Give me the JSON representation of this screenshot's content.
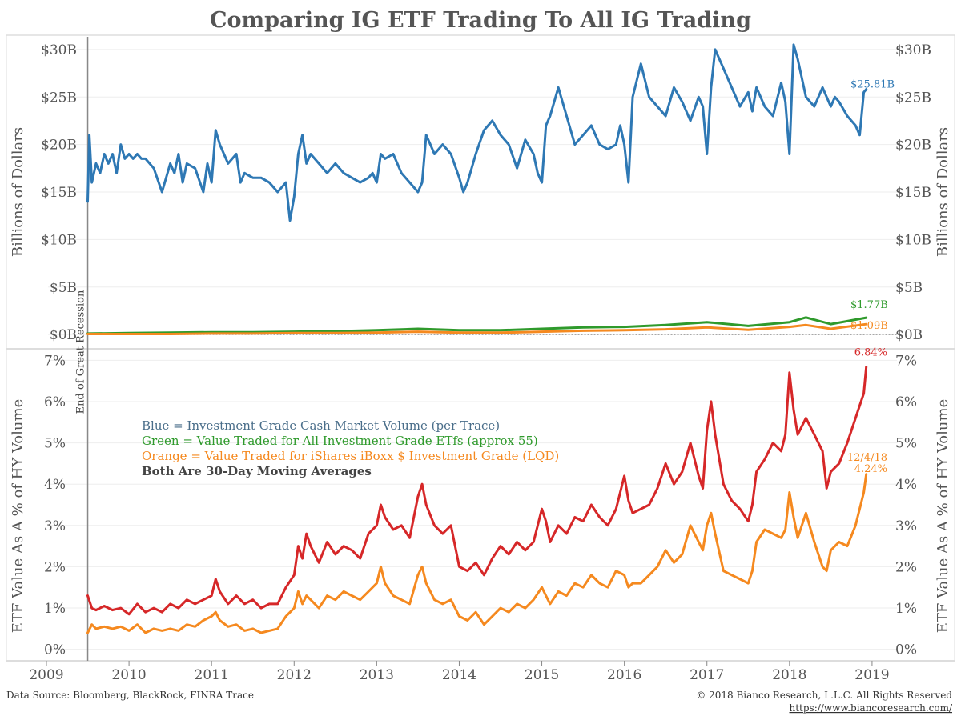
{
  "title": "Comparing IG ETF Trading To All IG Trading",
  "source_text": "Data Source: Bloomberg, BlackRock, FINRA Trace",
  "copyright_text": "© 2018 Bianco Research, L.L.C. All Rights Reserved",
  "url_text": "https://www.biancoresearch.com/",
  "recession_label": "End of Great Recession",
  "legend": {
    "blue": "Blue = Investment Grade Cash Market Volume (per Trace)",
    "green": "Green = Value Traded for All Investment Grade ETfs (approx 55)",
    "orange": "Orange = Value Traded for iShares iBoxx $ Investment Grade (LQD)",
    "note": "Both Are 30-Day Moving Averages"
  },
  "colors": {
    "blue": "#2e78b4",
    "green": "#2f9a2c",
    "orange": "#f5891f",
    "red": "#d62728",
    "text": "#555555"
  },
  "chart_data": [
    {
      "type": "line",
      "panel": "top",
      "ylabel": "Billions of Dollars",
      "ylim": [
        -1,
        31
      ],
      "yticks": [
        0,
        5,
        10,
        15,
        20,
        25,
        30
      ],
      "ytick_labels": [
        "$0B",
        "$5B",
        "$10B",
        "$15B",
        "$20B",
        "$25B",
        "$30B"
      ],
      "xlim": [
        2009.0,
        2019.35
      ],
      "end_date_x": 2018.93,
      "series": [
        {
          "color": "blue",
          "end_label": "$25.81B",
          "x": [
            2009.5,
            2009.52,
            2009.55,
            2009.6,
            2009.65,
            2009.7,
            2009.75,
            2009.8,
            2009.85,
            2009.9,
            2009.95,
            2010.0,
            2010.05,
            2010.1,
            2010.15,
            2010.2,
            2010.3,
            2010.4,
            2010.5,
            2010.55,
            2010.6,
            2010.65,
            2010.7,
            2010.8,
            2010.9,
            2010.95,
            2011.0,
            2011.05,
            2011.1,
            2011.2,
            2011.3,
            2011.35,
            2011.4,
            2011.5,
            2011.6,
            2011.7,
            2011.8,
            2011.9,
            2011.95,
            2012.0,
            2012.05,
            2012.1,
            2012.15,
            2012.2,
            2012.3,
            2012.4,
            2012.5,
            2012.6,
            2012.7,
            2012.8,
            2012.9,
            2012.95,
            2013.0,
            2013.05,
            2013.1,
            2013.2,
            2013.3,
            2013.4,
            2013.5,
            2013.55,
            2013.6,
            2013.65,
            2013.7,
            2013.8,
            2013.9,
            2014.0,
            2014.05,
            2014.1,
            2014.2,
            2014.3,
            2014.4,
            2014.5,
            2014.55,
            2014.6,
            2014.7,
            2014.8,
            2014.9,
            2014.95,
            2015.0,
            2015.05,
            2015.1,
            2015.2,
            2015.3,
            2015.4,
            2015.5,
            2015.6,
            2015.7,
            2015.8,
            2015.9,
            2015.95,
            2016.0,
            2016.05,
            2016.1,
            2016.2,
            2016.3,
            2016.4,
            2016.5,
            2016.6,
            2016.7,
            2016.8,
            2016.9,
            2016.95,
            2017.0,
            2017.05,
            2017.1,
            2017.2,
            2017.3,
            2017.4,
            2017.5,
            2017.55,
            2017.6,
            2017.7,
            2017.8,
            2017.9,
            2017.95,
            2018.0,
            2018.05,
            2018.1,
            2018.2,
            2018.3,
            2018.4,
            2018.5,
            2018.55,
            2018.6,
            2018.7,
            2018.8,
            2018.85,
            2018.9,
            2018.93
          ],
          "y": [
            14,
            21,
            16,
            18,
            17,
            19,
            18,
            19,
            17,
            20,
            18.5,
            19,
            18.5,
            19,
            18.5,
            18.5,
            17.5,
            15,
            18,
            17,
            19,
            16,
            18,
            17.5,
            15,
            18,
            16,
            21.5,
            20,
            18,
            19,
            16,
            17,
            16.5,
            16.5,
            16,
            15,
            16,
            12,
            14.5,
            19,
            21,
            18,
            19,
            18,
            17,
            18,
            17,
            16.5,
            16,
            16.5,
            17,
            16,
            19,
            18.5,
            19,
            17,
            16,
            15,
            16,
            21,
            20,
            19,
            20,
            19,
            16.5,
            15,
            16,
            19,
            21.5,
            22.5,
            21,
            20.5,
            20,
            17.5,
            20.5,
            19,
            17,
            16,
            22,
            23,
            26,
            23,
            20,
            21,
            22,
            20,
            19.5,
            20,
            22,
            20,
            16,
            25,
            28.5,
            25,
            24,
            23,
            26,
            24.5,
            22.5,
            25,
            24,
            19,
            26,
            30,
            28,
            26,
            24,
            25.5,
            23.5,
            26,
            24,
            23,
            26.5,
            24.5,
            19,
            30.5,
            29,
            25,
            24,
            26,
            24,
            25,
            24.5,
            23,
            22,
            21,
            25.5,
            25.81
          ]
        },
        {
          "color": "green",
          "end_label": "$1.77B",
          "x": [
            2009.5,
            2010,
            2010.5,
            2011,
            2011.5,
            2012,
            2012.5,
            2013,
            2013.5,
            2014,
            2014.5,
            2015,
            2015.5,
            2016,
            2016.5,
            2017,
            2017.5,
            2018,
            2018.2,
            2018.5,
            2018.93
          ],
          "y": [
            0.1,
            0.15,
            0.2,
            0.25,
            0.25,
            0.3,
            0.35,
            0.45,
            0.6,
            0.45,
            0.45,
            0.6,
            0.75,
            0.8,
            1.0,
            1.3,
            0.9,
            1.3,
            1.8,
            1.1,
            1.77
          ]
        },
        {
          "color": "orange",
          "end_label": "$1.09B",
          "x": [
            2009.5,
            2010,
            2010.5,
            2011,
            2011.5,
            2012,
            2012.5,
            2013,
            2013.5,
            2014,
            2014.5,
            2015,
            2015.5,
            2016,
            2016.5,
            2017,
            2017.5,
            2018,
            2018.2,
            2018.5,
            2018.93
          ],
          "y": [
            0.05,
            0.05,
            0.05,
            0.1,
            0.1,
            0.15,
            0.15,
            0.2,
            0.3,
            0.2,
            0.2,
            0.3,
            0.4,
            0.45,
            0.55,
            0.75,
            0.5,
            0.8,
            1.0,
            0.6,
            1.09
          ]
        }
      ]
    },
    {
      "type": "line",
      "panel": "bottom",
      "ylabel": "ETF Value As A % of HY Volume",
      "ylim": [
        -0.2,
        7.2
      ],
      "yticks": [
        0,
        1,
        2,
        3,
        4,
        5,
        6,
        7
      ],
      "ytick_labels": [
        "0%",
        "1%",
        "2%",
        "3%",
        "4%",
        "5%",
        "6%",
        "7%"
      ],
      "xlim": [
        2009.0,
        2019.35
      ],
      "xticks": [
        2009,
        2010,
        2011,
        2012,
        2013,
        2014,
        2015,
        2016,
        2017,
        2018,
        2019
      ],
      "xtick_labels": [
        "2009",
        "2010",
        "2011",
        "2012",
        "2013",
        "2014",
        "2015",
        "2016",
        "2017",
        "2018",
        "2019"
      ],
      "recession_x": 2009.5,
      "date_label": "12/4/18",
      "series": [
        {
          "color": "red",
          "end_label": "6.84%",
          "x": [
            2009.5,
            2009.55,
            2009.6,
            2009.7,
            2009.8,
            2009.9,
            2010.0,
            2010.1,
            2010.2,
            2010.3,
            2010.4,
            2010.5,
            2010.6,
            2010.7,
            2010.8,
            2010.9,
            2011.0,
            2011.05,
            2011.1,
            2011.2,
            2011.3,
            2011.4,
            2011.5,
            2011.6,
            2011.7,
            2011.8,
            2011.9,
            2012.0,
            2012.05,
            2012.1,
            2012.15,
            2012.2,
            2012.3,
            2012.4,
            2012.5,
            2012.6,
            2012.7,
            2012.8,
            2012.9,
            2013.0,
            2013.05,
            2013.1,
            2013.2,
            2013.3,
            2013.4,
            2013.5,
            2013.55,
            2013.6,
            2013.7,
            2013.8,
            2013.9,
            2014.0,
            2014.1,
            2014.2,
            2014.3,
            2014.4,
            2014.5,
            2014.6,
            2014.7,
            2014.8,
            2014.9,
            2015.0,
            2015.05,
            2015.1,
            2015.2,
            2015.3,
            2015.4,
            2015.5,
            2015.6,
            2015.7,
            2015.8,
            2015.9,
            2016.0,
            2016.05,
            2016.1,
            2016.2,
            2016.3,
            2016.4,
            2016.5,
            2016.6,
            2016.7,
            2016.8,
            2016.9,
            2016.95,
            2017.0,
            2017.05,
            2017.1,
            2017.2,
            2017.3,
            2017.4,
            2017.5,
            2017.55,
            2017.6,
            2017.7,
            2017.8,
            2017.9,
            2017.95,
            2018.0,
            2018.05,
            2018.1,
            2018.2,
            2018.3,
            2018.4,
            2018.45,
            2018.5,
            2018.6,
            2018.7,
            2018.8,
            2018.9,
            2018.93
          ],
          "y": [
            1.3,
            1.0,
            0.95,
            1.05,
            0.95,
            1.0,
            0.85,
            1.1,
            0.9,
            1.0,
            0.9,
            1.1,
            1.0,
            1.2,
            1.1,
            1.2,
            1.3,
            1.7,
            1.4,
            1.1,
            1.3,
            1.1,
            1.2,
            1.0,
            1.1,
            1.1,
            1.5,
            1.8,
            2.5,
            2.2,
            2.8,
            2.5,
            2.1,
            2.6,
            2.3,
            2.5,
            2.4,
            2.2,
            2.8,
            3.0,
            3.5,
            3.2,
            2.9,
            3.0,
            2.7,
            3.7,
            4.0,
            3.5,
            3.0,
            2.8,
            3.0,
            2.0,
            1.9,
            2.1,
            1.8,
            2.2,
            2.5,
            2.3,
            2.6,
            2.4,
            2.6,
            3.4,
            3.1,
            2.6,
            3.0,
            2.8,
            3.2,
            3.1,
            3.5,
            3.2,
            3.0,
            3.4,
            4.2,
            3.6,
            3.3,
            3.4,
            3.5,
            3.9,
            4.5,
            4.0,
            4.3,
            5.0,
            4.2,
            3.9,
            5.3,
            6.0,
            5.2,
            4.0,
            3.6,
            3.4,
            3.1,
            3.5,
            4.3,
            4.6,
            5.0,
            4.8,
            5.2,
            6.7,
            5.8,
            5.2,
            5.6,
            5.2,
            4.8,
            3.9,
            4.3,
            4.5,
            5.0,
            5.6,
            6.2,
            6.84
          ]
        },
        {
          "color": "orange",
          "end_label": "4.24%",
          "x": [
            2009.5,
            2009.55,
            2009.6,
            2009.7,
            2009.8,
            2009.9,
            2010.0,
            2010.1,
            2010.2,
            2010.3,
            2010.4,
            2010.5,
            2010.6,
            2010.7,
            2010.8,
            2010.9,
            2011.0,
            2011.05,
            2011.1,
            2011.2,
            2011.3,
            2011.4,
            2011.5,
            2011.6,
            2011.7,
            2011.8,
            2011.9,
            2012.0,
            2012.05,
            2012.1,
            2012.15,
            2012.2,
            2012.3,
            2012.4,
            2012.5,
            2012.6,
            2012.7,
            2012.8,
            2012.9,
            2013.0,
            2013.05,
            2013.1,
            2013.2,
            2013.3,
            2013.4,
            2013.5,
            2013.55,
            2013.6,
            2013.7,
            2013.8,
            2013.9,
            2014.0,
            2014.1,
            2014.2,
            2014.3,
            2014.4,
            2014.5,
            2014.6,
            2014.7,
            2014.8,
            2014.9,
            2015.0,
            2015.05,
            2015.1,
            2015.2,
            2015.3,
            2015.4,
            2015.5,
            2015.6,
            2015.7,
            2015.8,
            2015.9,
            2016.0,
            2016.05,
            2016.1,
            2016.2,
            2016.3,
            2016.4,
            2016.5,
            2016.6,
            2016.7,
            2016.8,
            2016.9,
            2016.95,
            2017.0,
            2017.05,
            2017.1,
            2017.2,
            2017.3,
            2017.4,
            2017.5,
            2017.55,
            2017.6,
            2017.7,
            2017.8,
            2017.9,
            2017.95,
            2018.0,
            2018.05,
            2018.1,
            2018.2,
            2018.3,
            2018.4,
            2018.45,
            2018.5,
            2018.6,
            2018.7,
            2018.8,
            2018.9,
            2018.93
          ],
          "y": [
            0.4,
            0.6,
            0.5,
            0.55,
            0.5,
            0.55,
            0.45,
            0.6,
            0.4,
            0.5,
            0.45,
            0.5,
            0.45,
            0.6,
            0.55,
            0.7,
            0.8,
            0.9,
            0.7,
            0.55,
            0.6,
            0.45,
            0.5,
            0.4,
            0.45,
            0.5,
            0.8,
            1.0,
            1.4,
            1.1,
            1.3,
            1.2,
            1.0,
            1.3,
            1.2,
            1.4,
            1.3,
            1.2,
            1.4,
            1.6,
            2.0,
            1.6,
            1.3,
            1.2,
            1.1,
            1.8,
            2.0,
            1.6,
            1.2,
            1.1,
            1.2,
            0.8,
            0.7,
            0.9,
            0.6,
            0.8,
            1.0,
            0.9,
            1.1,
            1.0,
            1.2,
            1.5,
            1.3,
            1.1,
            1.4,
            1.3,
            1.6,
            1.5,
            1.8,
            1.6,
            1.5,
            1.9,
            1.8,
            1.5,
            1.6,
            1.6,
            1.8,
            2.0,
            2.4,
            2.1,
            2.3,
            3.0,
            2.6,
            2.4,
            3.0,
            3.3,
            2.8,
            1.9,
            1.8,
            1.7,
            1.6,
            1.9,
            2.6,
            2.9,
            2.8,
            2.7,
            2.9,
            3.8,
            3.2,
            2.7,
            3.3,
            2.6,
            2.0,
            1.9,
            2.4,
            2.6,
            2.5,
            3.0,
            3.8,
            4.24
          ]
        }
      ]
    }
  ]
}
